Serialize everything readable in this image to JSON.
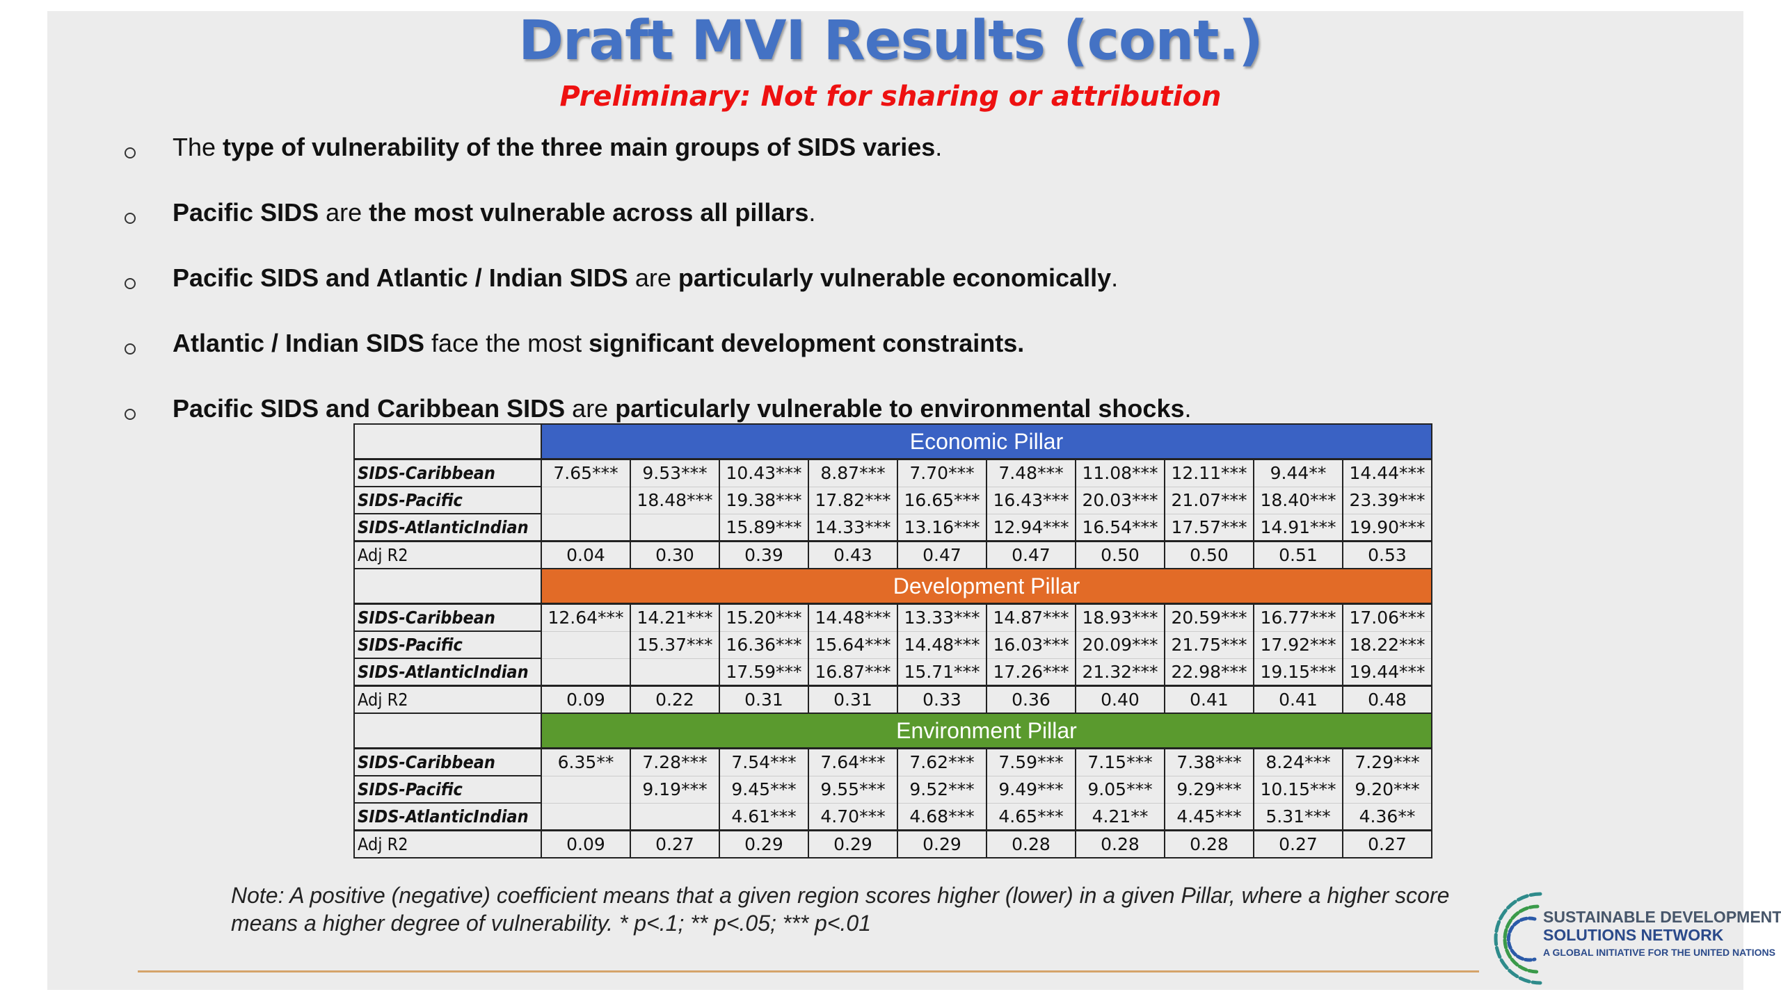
{
  "title": "Draft MVI Results (cont.)",
  "subtitle": "Preliminary: Not for sharing or attribution",
  "bullets": [
    {
      "p1": "The ",
      "b1": "type of vulnerability of the three main groups of SIDS varies",
      "p2": ".",
      "b2": "",
      "p3": ""
    },
    {
      "p1": "",
      "b1": "Pacific SIDS",
      "p2": " are ",
      "b2": "the most vulnerable across all pillars",
      "p3": "."
    },
    {
      "p1": "",
      "b1": "Pacific SIDS and Atlantic / Indian SIDS",
      "p2": " are ",
      "b2": "particularly vulnerable economically",
      "p3": "."
    },
    {
      "p1": "",
      "b1": "Atlantic / Indian SIDS",
      "p2": " face the most ",
      "b2": "significant development constraints.",
      "p3": ""
    },
    {
      "p1": "",
      "b1": "Pacific SIDS and Caribbean SIDS",
      "p2": " are ",
      "b2": "particularly vulnerable to environmental shocks",
      "p3": "."
    }
  ],
  "table": {
    "pillars": [
      {
        "name": "Economic Pillar",
        "color": "#3a62c4",
        "rows": [
          {
            "label": "SIDS-Caribbean",
            "values": [
              "7.65***",
              "9.53***",
              "10.43***",
              "8.87***",
              "7.70***",
              "7.48***",
              "11.08***",
              "12.11***",
              "9.44**",
              "14.44***"
            ]
          },
          {
            "label": "SIDS-Pacific",
            "values": [
              "",
              "18.48***",
              "19.38***",
              "17.82***",
              "16.65***",
              "16.43***",
              "20.03***",
              "21.07***",
              "18.40***",
              "23.39***"
            ]
          },
          {
            "label": "SIDS-AtlanticIndian",
            "values": [
              "",
              "",
              "15.89***",
              "14.33***",
              "13.16***",
              "12.94***",
              "16.54***",
              "17.57***",
              "14.91***",
              "19.90***"
            ]
          }
        ],
        "adj_label": "Adj R2",
        "adj": [
          "0.04",
          "0.30",
          "0.39",
          "0.43",
          "0.47",
          "0.47",
          "0.50",
          "0.50",
          "0.51",
          "0.53"
        ]
      },
      {
        "name": "Development Pillar",
        "color": "#e26b27",
        "rows": [
          {
            "label": "SIDS-Caribbean",
            "values": [
              "12.64***",
              "14.21***",
              "15.20***",
              "14.48***",
              "13.33***",
              "14.87***",
              "18.93***",
              "20.59***",
              "16.77***",
              "17.06***"
            ]
          },
          {
            "label": "SIDS-Pacific",
            "values": [
              "",
              "15.37***",
              "16.36***",
              "15.64***",
              "14.48***",
              "16.03***",
              "20.09***",
              "21.75***",
              "17.92***",
              "18.22***"
            ]
          },
          {
            "label": "SIDS-AtlanticIndian",
            "values": [
              "",
              "",
              "17.59***",
              "16.87***",
              "15.71***",
              "17.26***",
              "21.32***",
              "22.98***",
              "19.15***",
              "19.44***"
            ]
          }
        ],
        "adj_label": "Adj R2",
        "adj": [
          "0.09",
          "0.22",
          "0.31",
          "0.31",
          "0.33",
          "0.36",
          "0.40",
          "0.41",
          "0.41",
          "0.48"
        ]
      },
      {
        "name": "Environment Pillar",
        "color": "#5a9a2e",
        "rows": [
          {
            "label": "SIDS-Caribbean",
            "values": [
              "6.35**",
              "7.28***",
              "7.54***",
              "7.64***",
              "7.62***",
              "7.59***",
              "7.15***",
              "7.38***",
              "8.24***",
              "7.29***"
            ]
          },
          {
            "label": "SIDS-Pacific",
            "values": [
              "",
              "9.19***",
              "9.45***",
              "9.55***",
              "9.52***",
              "9.49***",
              "9.05***",
              "9.29***",
              "10.15***",
              "9.20***"
            ]
          },
          {
            "label": "SIDS-AtlanticIndian",
            "values": [
              "",
              "",
              "4.61***",
              "4.70***",
              "4.68***",
              "4.65***",
              "4.21**",
              "4.45***",
              "5.31***",
              "4.36**"
            ]
          }
        ],
        "adj_label": "Adj R2",
        "adj": [
          "0.09",
          "0.27",
          "0.29",
          "0.29",
          "0.29",
          "0.28",
          "0.28",
          "0.28",
          "0.27",
          "0.27"
        ]
      }
    ]
  },
  "note": "Note: A positive (negative) coefficient means that a given region scores higher (lower) in a given Pillar, where a higher score means a higher degree of vulnerability. * p<.1; ** p<.05; *** p<.01",
  "logo": {
    "line1": "SUSTAINABLE DEVELOPMENT",
    "line2": "SOLUTIONS NETWORK",
    "line3": "A GLOBAL INITIATIVE FOR THE UNITED NATIONS",
    "icon": "sdsn-logo-icon"
  }
}
